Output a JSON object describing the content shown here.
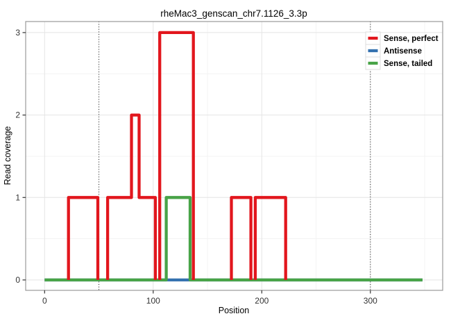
{
  "chart_data": {
    "type": "line",
    "step": true,
    "title": "rheMac3_genscan_chr7.1126_3.3p",
    "xlabel": "Position",
    "ylabel": "Read coverage",
    "xlim": [
      0,
      348
    ],
    "ylim": [
      0,
      3
    ],
    "x_ticks": [
      0,
      100,
      200,
      300
    ],
    "x_minor_ticks": [
      50,
      150,
      250,
      350
    ],
    "y_ticks": [
      0,
      1,
      2,
      3
    ],
    "y_minor_ticks": [
      0.5,
      1.5,
      2.5
    ],
    "grid": true,
    "legend_position": "top-right-inside",
    "reference_lines": {
      "positions": [
        50,
        300
      ],
      "style": "dotted",
      "color": "#1a1a1a"
    },
    "series": [
      {
        "name": "Sense, perfect",
        "color": "#e2161d",
        "z": 3,
        "paths": [
          [
            [
              22,
              0
            ],
            [
              22,
              1
            ],
            [
              49,
              1
            ],
            [
              49,
              0
            ]
          ],
          [
            [
              58,
              0
            ],
            [
              58,
              1
            ],
            [
              80,
              1
            ],
            [
              80,
              2
            ],
            [
              87,
              2
            ],
            [
              87,
              1
            ],
            [
              102,
              1
            ],
            [
              102,
              0
            ]
          ],
          [
            [
              106,
              0
            ],
            [
              106,
              3
            ],
            [
              137,
              3
            ],
            [
              137,
              0
            ]
          ],
          [
            [
              172,
              0
            ],
            [
              172,
              1
            ],
            [
              190,
              1
            ],
            [
              190,
              0
            ]
          ],
          [
            [
              194,
              0
            ],
            [
              194,
              1
            ],
            [
              222,
              1
            ],
            [
              222,
              0
            ]
          ]
        ]
      },
      {
        "name": "Antisense",
        "color": "#3572b0",
        "z": 1,
        "paths": [
          [
            [
              0,
              0
            ],
            [
              348,
              0
            ]
          ]
        ]
      },
      {
        "name": "Sense, tailed",
        "color": "#48a347",
        "z": 2,
        "paths": [
          [
            [
              0,
              0
            ],
            [
              112,
              0
            ],
            [
              112,
              1
            ],
            [
              134,
              1
            ],
            [
              134,
              0
            ],
            [
              348,
              0
            ]
          ]
        ]
      }
    ]
  },
  "style_colors": {
    "grid_major": "#e4e4e4",
    "grid_minor": "#f3f3f3",
    "panel_border": "#999999",
    "tick_mark": "#333333"
  }
}
